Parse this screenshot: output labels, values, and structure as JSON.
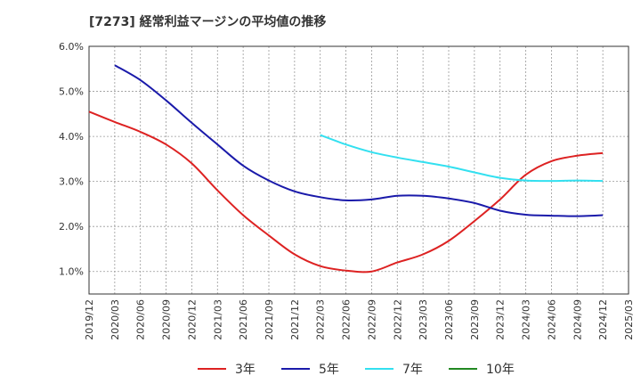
{
  "chart_data": {
    "type": "line",
    "title": "[7273]  経常利益マージンの平均値の推移",
    "xlabel": "",
    "ylabel": "",
    "x_ticks": [
      "2019/12",
      "2020/03",
      "2020/06",
      "2020/09",
      "2020/12",
      "2021/03",
      "2021/06",
      "2021/09",
      "2021/12",
      "2022/03",
      "2022/06",
      "2022/09",
      "2022/12",
      "2023/03",
      "2023/06",
      "2023/09",
      "2023/12",
      "2024/03",
      "2024/06",
      "2024/09",
      "2024/12",
      "2025/03"
    ],
    "y_ticks": [
      "1.0%",
      "2.0%",
      "3.0%",
      "4.0%",
      "5.0%",
      "6.0%"
    ],
    "ylim": [
      0.5,
      6.0
    ],
    "grid": true,
    "legend_position": "bottom",
    "series": [
      {
        "name": "3年",
        "color": "#dd2222",
        "x": [
          "2019/12",
          "2020/03",
          "2020/06",
          "2020/09",
          "2020/12",
          "2021/03",
          "2021/06",
          "2021/09",
          "2021/12",
          "2022/03",
          "2022/06",
          "2022/09",
          "2022/12",
          "2023/03",
          "2023/06",
          "2023/09",
          "2023/12",
          "2024/03",
          "2024/06",
          "2024/09",
          "2024/12"
        ],
        "values": [
          4.55,
          4.32,
          4.1,
          3.82,
          3.4,
          2.8,
          2.25,
          1.8,
          1.38,
          1.12,
          1.02,
          1.0,
          1.2,
          1.38,
          1.68,
          2.12,
          2.6,
          3.15,
          3.45,
          3.57,
          3.63
        ]
      },
      {
        "name": "5年",
        "color": "#1a1aaa",
        "x": [
          "2020/03",
          "2020/06",
          "2020/09",
          "2020/12",
          "2021/03",
          "2021/06",
          "2021/09",
          "2021/12",
          "2022/03",
          "2022/06",
          "2022/09",
          "2022/12",
          "2023/03",
          "2023/06",
          "2023/09",
          "2023/12",
          "2024/03",
          "2024/06",
          "2024/09",
          "2024/12"
        ],
        "values": [
          5.58,
          5.25,
          4.8,
          4.3,
          3.82,
          3.35,
          3.02,
          2.78,
          2.65,
          2.58,
          2.6,
          2.68,
          2.68,
          2.62,
          2.52,
          2.35,
          2.26,
          2.24,
          2.23,
          2.25
        ]
      },
      {
        "name": "7年",
        "color": "#33e0f0",
        "x": [
          "2022/03",
          "2022/06",
          "2022/09",
          "2022/12",
          "2023/03",
          "2023/06",
          "2023/09",
          "2023/12",
          "2024/03",
          "2024/06",
          "2024/09",
          "2024/12"
        ],
        "values": [
          4.03,
          3.82,
          3.65,
          3.53,
          3.43,
          3.33,
          3.2,
          3.08,
          3.02,
          3.01,
          3.02,
          3.01
        ]
      },
      {
        "name": "10年",
        "color": "#228822",
        "x": [],
        "values": []
      }
    ]
  }
}
